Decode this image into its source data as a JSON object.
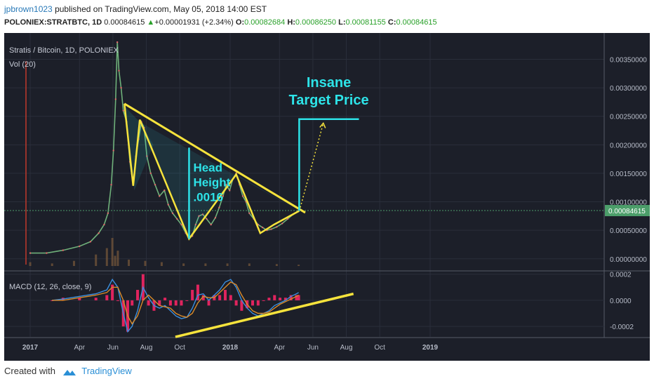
{
  "header": {
    "author": "jpbrown1023",
    "published_text": "published on TradingView.com, May 05, 2018 14:00 EST",
    "symbol": "POLONIEX:STRATBTC, 1D",
    "last": "0.00084615",
    "change": "+0.00001931 (+2.34%)",
    "o_label": "O:",
    "o_value": "0.00082684",
    "h_label": "H:",
    "h_value": "0.00086250",
    "l_label": "L:",
    "l_value": "0.00081155",
    "c_label": "C:",
    "c_value": "0.00084615",
    "up_arrow": "▲"
  },
  "legend": {
    "main": "Stratis / Bitcoin, 1D, POLONIEX",
    "vol": "Vol (20)",
    "macd": "MACD (12, 26, close, 9)"
  },
  "chart_data": {
    "type": "line",
    "title": "Stratis / Bitcoin, 1D, POLONIEX",
    "price_axis": {
      "ticks": [
        "0.00350000",
        "0.00300000",
        "0.00250000",
        "0.00200000",
        "0.00150000",
        "0.00100000",
        "0.00050000",
        "0.00000000"
      ],
      "tick_values": [
        0.0035,
        0.003,
        0.0025,
        0.002,
        0.0015,
        0.001,
        0.0005,
        0
      ],
      "ylim": [
        -0.0002,
        0.0039
      ],
      "current_price": "0.00084615",
      "current_value": 0.00084615
    },
    "macd_axis": {
      "ticks": [
        "0.0002",
        "0.0000",
        "-0.0002"
      ],
      "tick_values": [
        0.0002,
        0,
        -0.0002
      ],
      "ylim": [
        -0.00028,
        0.00022
      ]
    },
    "x_axis": {
      "ticks": [
        "2017",
        "Apr",
        "Jun",
        "Aug",
        "Oct",
        "2018",
        "Apr",
        "Jun",
        "Aug",
        "Oct",
        "2019"
      ],
      "tick_days": [
        0,
        90,
        151,
        212,
        273,
        365,
        455,
        516,
        577,
        638,
        730
      ],
      "bold": [
        "2017",
        "2018",
        "2019"
      ]
    },
    "price_series_close": [
      [
        0,
        0.0001
      ],
      [
        30,
        0.0001
      ],
      [
        60,
        0.00015
      ],
      [
        90,
        0.00022
      ],
      [
        110,
        0.0003
      ],
      [
        125,
        0.00045
      ],
      [
        135,
        0.0006
      ],
      [
        142,
        0.0008
      ],
      [
        148,
        0.0013
      ],
      [
        152,
        0.0019
      ],
      [
        156,
        0.0028
      ],
      [
        159,
        0.0038
      ],
      [
        162,
        0.0033
      ],
      [
        166,
        0.003
      ],
      [
        170,
        0.0026
      ],
      [
        176,
        0.0024
      ],
      [
        182,
        0.0017
      ],
      [
        188,
        0.0013
      ],
      [
        193,
        0.0018
      ],
      [
        198,
        0.0021
      ],
      [
        203,
        0.0024
      ],
      [
        208,
        0.0023
      ],
      [
        213,
        0.0018
      ],
      [
        220,
        0.0015
      ],
      [
        228,
        0.0013
      ],
      [
        236,
        0.0011
      ],
      [
        245,
        0.0012
      ],
      [
        252,
        0.00095
      ],
      [
        260,
        0.0008
      ],
      [
        268,
        0.0007
      ],
      [
        276,
        0.0006
      ],
      [
        284,
        0.00045
      ],
      [
        290,
        0.00036
      ],
      [
        296,
        0.0004
      ],
      [
        302,
        0.0006
      ],
      [
        308,
        0.00075
      ],
      [
        315,
        0.00078
      ],
      [
        322,
        0.0007
      ],
      [
        330,
        0.0006
      ],
      [
        338,
        0.00072
      ],
      [
        345,
        0.0009
      ],
      [
        352,
        0.0011
      ],
      [
        358,
        0.0013
      ],
      [
        364,
        0.0012
      ],
      [
        370,
        0.0014
      ],
      [
        376,
        0.0015
      ],
      [
        382,
        0.0013
      ],
      [
        388,
        0.0011
      ],
      [
        394,
        0.001
      ],
      [
        400,
        0.0008
      ],
      [
        408,
        0.0007
      ],
      [
        416,
        0.0006
      ],
      [
        424,
        0.00055
      ],
      [
        432,
        0.0005
      ],
      [
        440,
        0.00052
      ],
      [
        450,
        0.00056
      ],
      [
        460,
        0.00062
      ],
      [
        470,
        0.0007
      ],
      [
        480,
        0.00078
      ],
      [
        490,
        0.00084615
      ]
    ],
    "volume_series": [
      [
        0,
        3e-05
      ],
      [
        40,
        2e-05
      ],
      [
        80,
        4e-05
      ],
      [
        120,
        9e-05
      ],
      [
        140,
        0.00014
      ],
      [
        150,
        0.00022
      ],
      [
        155,
        8e-05
      ],
      [
        160,
        0.00012
      ],
      [
        180,
        5e-05
      ],
      [
        210,
        4e-05
      ],
      [
        240,
        3e-05
      ],
      [
        280,
        2e-05
      ],
      [
        320,
        2e-05
      ],
      [
        360,
        2e-05
      ],
      [
        400,
        2e-05
      ],
      [
        450,
        1.5e-05
      ],
      [
        490,
        1e-05
      ]
    ],
    "macd_series": [
      [
        40,
        0.0
      ],
      [
        60,
        1e-05
      ],
      [
        90,
        3e-05
      ],
      [
        120,
        5e-05
      ],
      [
        140,
        8e-05
      ],
      [
        150,
        0.00016
      ],
      [
        160,
        0.0001
      ],
      [
        170,
        -0.0001
      ],
      [
        178,
        -0.00024
      ],
      [
        186,
        -0.0002
      ],
      [
        196,
        -8e-05
      ],
      [
        206,
        0.0001
      ],
      [
        216,
        2e-05
      ],
      [
        226,
        -4e-05
      ],
      [
        236,
        -6e-05
      ],
      [
        246,
        -4e-05
      ],
      [
        256,
        -8e-05
      ],
      [
        266,
        -0.00012
      ],
      [
        276,
        -0.00014
      ],
      [
        286,
        -0.00013
      ],
      [
        296,
        -6e-05
      ],
      [
        306,
        4e-05
      ],
      [
        316,
        5e-05
      ],
      [
        326,
        0.0
      ],
      [
        336,
        4e-05
      ],
      [
        346,
        8e-05
      ],
      [
        356,
        0.00014
      ],
      [
        366,
        0.00016
      ],
      [
        376,
        0.0001
      ],
      [
        386,
        0.0
      ],
      [
        396,
        -6e-05
      ],
      [
        406,
        -0.0001
      ],
      [
        416,
        -0.00012
      ],
      [
        426,
        -0.0001
      ],
      [
        436,
        -8e-05
      ],
      [
        446,
        -4e-05
      ],
      [
        456,
        -2e-05
      ],
      [
        466,
        0.0
      ],
      [
        476,
        3e-05
      ],
      [
        486,
        5e-05
      ],
      [
        490,
        6e-05
      ]
    ],
    "signal_series": [
      [
        40,
        0.0
      ],
      [
        60,
        0.0
      ],
      [
        90,
        2e-05
      ],
      [
        120,
        4e-05
      ],
      [
        140,
        6e-05
      ],
      [
        150,
        0.0001
      ],
      [
        160,
        0.0001
      ],
      [
        170,
        0.0
      ],
      [
        178,
        -0.00012
      ],
      [
        186,
        -0.00018
      ],
      [
        196,
        -0.00012
      ],
      [
        206,
        0.0
      ],
      [
        216,
        4e-05
      ],
      [
        226,
        0.0
      ],
      [
        236,
        -4e-05
      ],
      [
        246,
        -5e-05
      ],
      [
        256,
        -6e-05
      ],
      [
        266,
        -0.0001
      ],
      [
        276,
        -0.00012
      ],
      [
        286,
        -0.00013
      ],
      [
        296,
        -0.0001
      ],
      [
        306,
        -2e-05
      ],
      [
        316,
        3e-05
      ],
      [
        326,
        2e-05
      ],
      [
        336,
        2e-05
      ],
      [
        346,
        6e-05
      ],
      [
        356,
        0.0001
      ],
      [
        366,
        0.00014
      ],
      [
        376,
        0.00012
      ],
      [
        386,
        4e-05
      ],
      [
        396,
        -3e-05
      ],
      [
        406,
        -8e-05
      ],
      [
        416,
        -0.0001
      ],
      [
        426,
        -0.0001
      ],
      [
        436,
        -9e-05
      ],
      [
        446,
        -6e-05
      ],
      [
        456,
        -3e-05
      ],
      [
        466,
        -1e-05
      ],
      [
        476,
        1e-05
      ],
      [
        486,
        3e-05
      ],
      [
        490,
        4e-05
      ]
    ],
    "annotations": {
      "head_height": [
        "Head",
        "Height",
        ".0016"
      ],
      "target": [
        "Insane",
        "Target Price"
      ]
    }
  },
  "footer": {
    "created_with": "Created with",
    "brand": "TradingView"
  },
  "colors": {
    "background": "#1c1f29",
    "annotation_yellow": "#f6e33c",
    "annotation_cyan": "#2de3e8",
    "price_label_green": "#4c9e6a",
    "macd_blue": "#3a8fe0",
    "signal_orange": "#d98a2a",
    "hist_pink": "#e0245e"
  }
}
